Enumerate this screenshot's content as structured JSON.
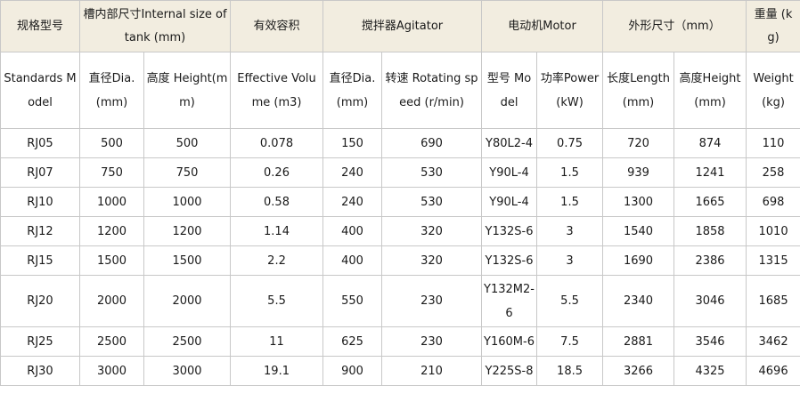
{
  "header_top": {
    "model": "规格型号",
    "internal_size": "槽内部尺寸Internal size of tank (mm)",
    "effective_volume": "有效容积",
    "agitator": "搅拌器Agitator",
    "motor": "电动机Motor",
    "dimensions": "外形尺寸（mm）",
    "weight": "重量 (kg)"
  },
  "header_sub": [
    "Standards Model",
    "直径Dia. (mm)",
    "高度 Height(mm)",
    "Effective Volume (m3)",
    "直径Dia. (mm)",
    "转速 Rotating speed (r/min)",
    "型号 Model",
    "功率Power (kW)",
    "长度Length (mm)",
    "高度Height (mm)",
    "Weight (kg)"
  ],
  "rows": [
    [
      "RJ05",
      "500",
      "500",
      "0.078",
      "150",
      "690",
      "Y80L2-4",
      "0.75",
      "720",
      "874",
      "110"
    ],
    [
      "RJ07",
      "750",
      "750",
      "0.26",
      "240",
      "530",
      "Y90L-4",
      "1.5",
      "939",
      "1241",
      "258"
    ],
    [
      "RJ10",
      "1000",
      "1000",
      "0.58",
      "240",
      "530",
      "Y90L-4",
      "1.5",
      "1300",
      "1665",
      "698"
    ],
    [
      "RJ12",
      "1200",
      "1200",
      "1.14",
      "400",
      "320",
      "Y132S-6",
      "3",
      "1540",
      "1858",
      "1010"
    ],
    [
      "RJ15",
      "1500",
      "1500",
      "2.2",
      "400",
      "320",
      "Y132S-6",
      "3",
      "1690",
      "2386",
      "1315"
    ],
    [
      "RJ20",
      "2000",
      "2000",
      "5.5",
      "550",
      "230",
      "Y132M2-6",
      "5.5",
      "2340",
      "3046",
      "1685"
    ],
    [
      "RJ25",
      "2500",
      "2500",
      "11",
      "625",
      "230",
      "Y160M-6",
      "7.5",
      "2881",
      "3546",
      "3462"
    ],
    [
      "RJ30",
      "3000",
      "3000",
      "19.1",
      "900",
      "210",
      "Y225S-8",
      "18.5",
      "3266",
      "4325",
      "4696"
    ]
  ]
}
